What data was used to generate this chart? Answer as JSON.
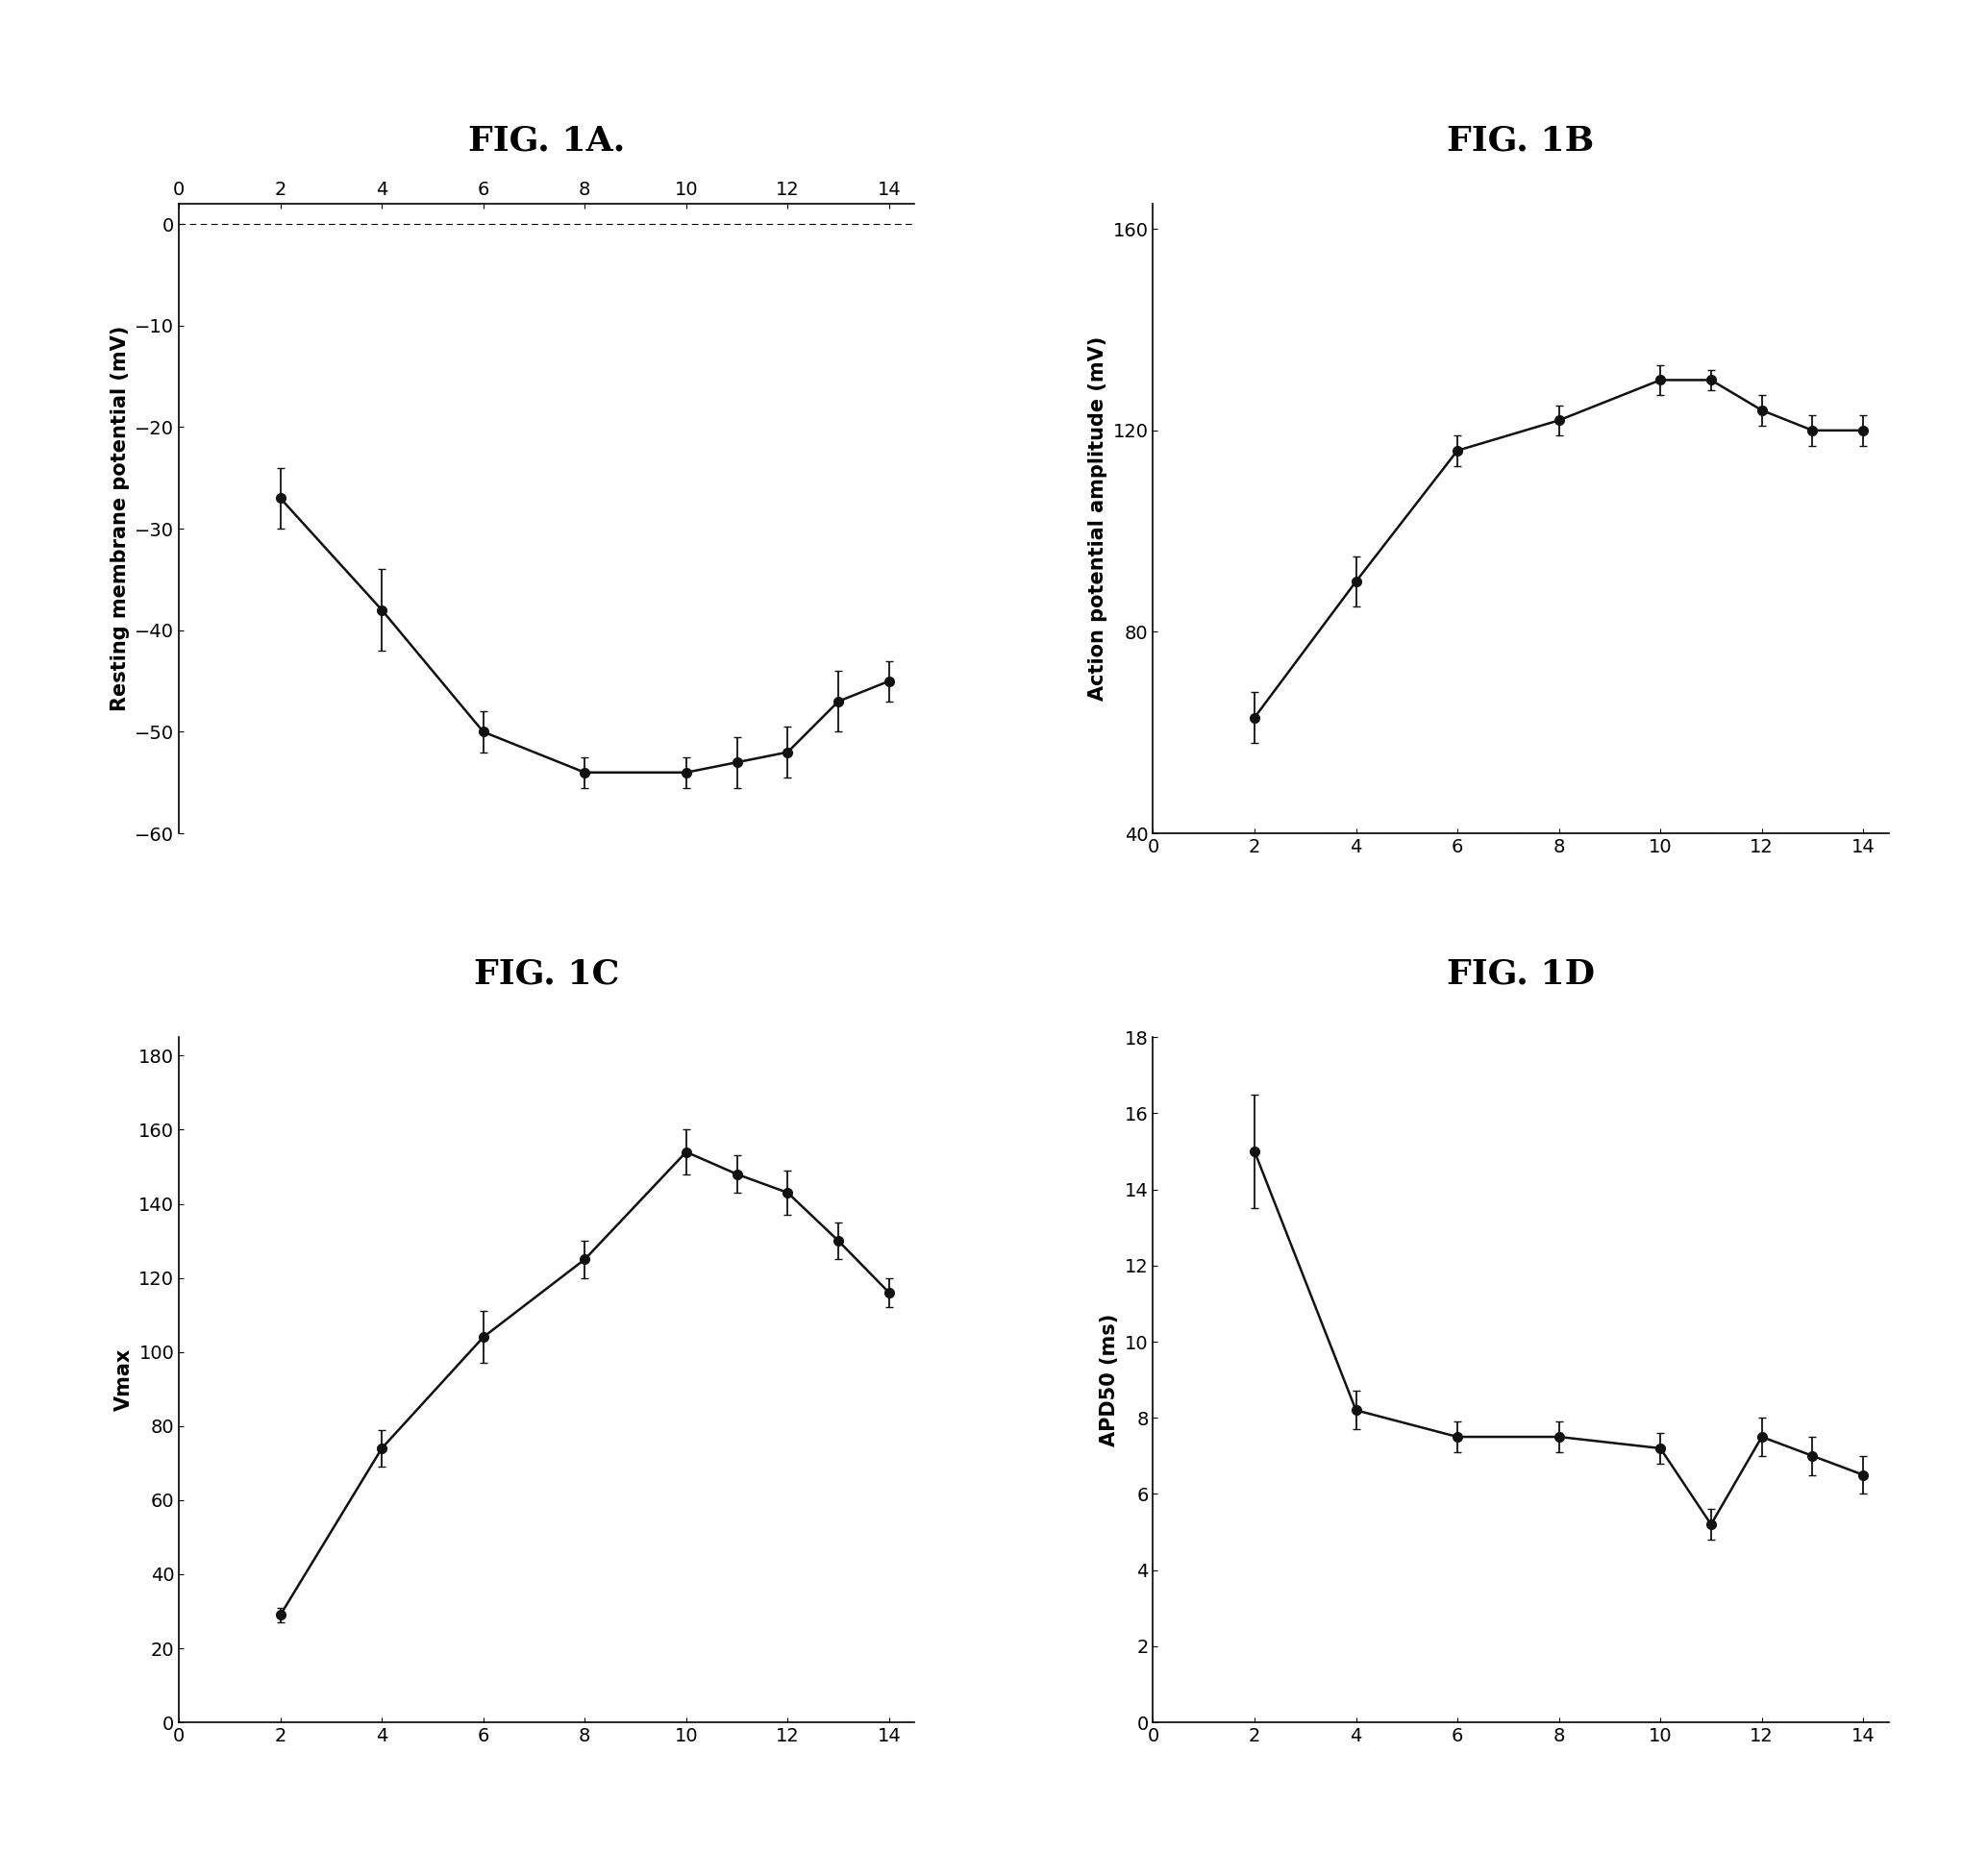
{
  "fig1A": {
    "title": "FIG. 1A.",
    "ylabel": "Resting membrane potential (mV)",
    "x": [
      2,
      4,
      6,
      8,
      10,
      11,
      12,
      13,
      14
    ],
    "y": [
      -27,
      -38,
      -50,
      -54,
      -54,
      -53,
      -52,
      -47,
      -45
    ],
    "yerr": [
      3.0,
      4.0,
      2.0,
      1.5,
      1.5,
      2.5,
      2.5,
      3.0,
      2.0
    ],
    "xlim": [
      0,
      14.5
    ],
    "ylim": [
      -60,
      2
    ],
    "yticks": [
      0,
      -10,
      -20,
      -30,
      -40,
      -50,
      -60
    ],
    "xticks": [
      0,
      2,
      4,
      6,
      8,
      10,
      12,
      14
    ],
    "xaxis_top": true
  },
  "fig1B": {
    "title": "FIG. 1B",
    "ylabel": "Action potential amplitude (mV)",
    "x": [
      2,
      4,
      6,
      8,
      10,
      11,
      12,
      13,
      14
    ],
    "y": [
      63,
      90,
      116,
      122,
      130,
      130,
      124,
      120,
      120
    ],
    "yerr": [
      5,
      5,
      3,
      3,
      3,
      2,
      3,
      3,
      3
    ],
    "xlim": [
      0,
      14.5
    ],
    "ylim": [
      40,
      165
    ],
    "yticks": [
      40,
      80,
      120,
      160
    ],
    "xticks": [
      0,
      2,
      4,
      6,
      8,
      10,
      12,
      14
    ],
    "xaxis_top": false
  },
  "fig1C": {
    "title": "FIG. 1C",
    "ylabel": "Vmax",
    "x": [
      2,
      4,
      6,
      8,
      10,
      11,
      12,
      13,
      14
    ],
    "y": [
      29,
      74,
      104,
      125,
      154,
      148,
      143,
      130,
      116
    ],
    "yerr": [
      2,
      5,
      7,
      5,
      6,
      5,
      6,
      5,
      4
    ],
    "xlim": [
      0,
      14.5
    ],
    "ylim": [
      0,
      185
    ],
    "yticks": [
      0,
      20,
      40,
      60,
      80,
      100,
      120,
      140,
      160,
      180
    ],
    "xticks": [
      0,
      2,
      4,
      6,
      8,
      10,
      12,
      14
    ],
    "xaxis_top": false
  },
  "fig1D": {
    "title": "FIG. 1D",
    "ylabel": "APD50 (ms)",
    "x": [
      2,
      4,
      6,
      8,
      10,
      11,
      12,
      13,
      14
    ],
    "y": [
      15.0,
      8.2,
      7.5,
      7.5,
      7.2,
      5.2,
      7.5,
      7.0,
      6.5
    ],
    "yerr": [
      1.5,
      0.5,
      0.4,
      0.4,
      0.4,
      0.4,
      0.5,
      0.5,
      0.5
    ],
    "xlim": [
      0,
      14.5
    ],
    "ylim": [
      0,
      18
    ],
    "yticks": [
      0,
      2,
      4,
      6,
      8,
      10,
      12,
      14,
      16,
      18
    ],
    "xticks": [
      0,
      2,
      4,
      6,
      8,
      10,
      12,
      14
    ],
    "xaxis_top": false
  },
  "background_color": "#ffffff",
  "line_color": "#111111",
  "marker_color": "#111111",
  "marker": "o",
  "markersize": 7,
  "linewidth": 1.8,
  "capsize": 3,
  "elinewidth": 1.3,
  "title_fontsize": 26,
  "label_fontsize": 15,
  "tick_fontsize": 14
}
